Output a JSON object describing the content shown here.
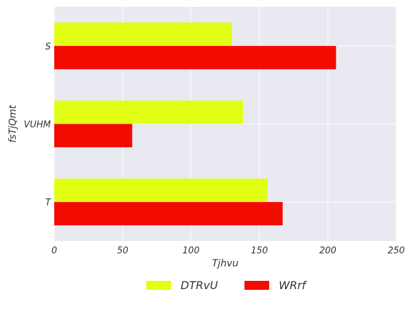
{
  "chart_data": {
    "type": "bar",
    "orientation": "horizontal",
    "categories": [
      "S",
      "VUHM",
      "T"
    ],
    "series": [
      {
        "name": "DTRvU",
        "values": [
          130,
          138,
          156
        ],
        "color": "#e1ff14"
      },
      {
        "name": "WRrf",
        "values": [
          206,
          57,
          167
        ],
        "color": "#f20c00"
      }
    ],
    "xlabel": "Tjhvu",
    "ylabel": "fsTjQmt",
    "xlim": [
      0,
      250
    ],
    "xticks": [
      "0",
      "50",
      "100",
      "150",
      "200",
      "250"
    ],
    "grid": true,
    "legend": "bottom-center",
    "background": "#e9e9f1"
  }
}
